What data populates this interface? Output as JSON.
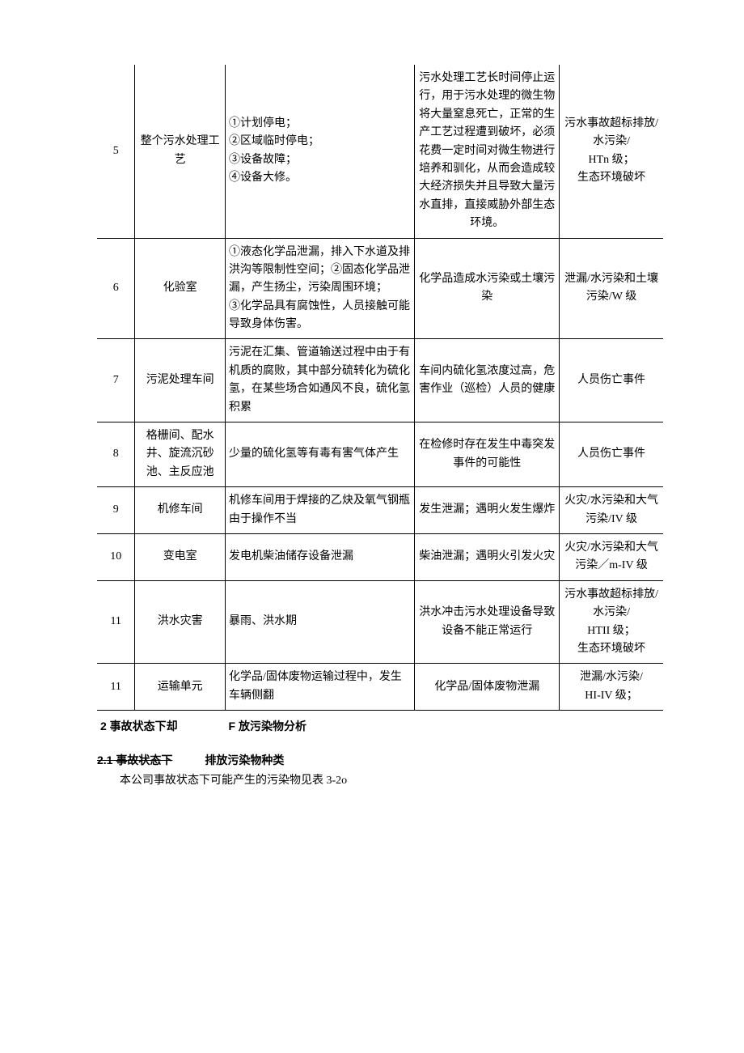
{
  "rows": [
    {
      "idx": "5",
      "loc": "整个污水处理工艺",
      "cause": "①计划停电；\n②区域临时停电；\n③设备故障；\n④设备大修。",
      "impact": "污水处理工艺长时间停止运行，用于污水处理的微生物将大量窒息死亡，正常的生产工艺过程遭到破坏，必须花费一定时间对微生物进行培养和驯化，从而会造成较大经济损失并且导致大量污水直排，直接威胁外部生态环境。",
      "risk": "污水事故超标排放/水污染/\nHTn 级；\n生态环境破坏"
    },
    {
      "idx": "6",
      "loc": "化验室",
      "cause": "①液态化学品泄漏，排入下水道及排洪沟等限制性空间；②固态化学品泄漏，产生扬尘，污染周围环境；\n③化学品具有腐蚀性，人员接触可能导致身体伤害。",
      "impact": "化学品造成水污染或土壤污染",
      "risk": "泄漏/水污染和土壤污染/W 级"
    },
    {
      "idx": "7",
      "loc": "污泥处理车间",
      "cause": "污泥在汇集、管道输送过程中由于有机质的腐败，其中部分硫转化为硫化氢，在某些场合如通风不良，硫化氢积累",
      "impact": "车间内硫化氢浓度过高，危害作业（巡检）人员的健康",
      "risk": "人员伤亡事件"
    },
    {
      "idx": "8",
      "loc": "格栅间、配水井、旋流沉砂池、主反应池",
      "cause": "少量的硫化氢等有毒有害气体产生",
      "impact": "在检修时存在发生中毒突发事件的可能性",
      "risk": "人员伤亡事件"
    },
    {
      "idx": "9",
      "loc": "机修车间",
      "cause": "机修车间用于焊接的乙炔及氧气钢瓶由于操作不当",
      "impact": "发生泄漏；遇明火发生爆炸",
      "risk": "火灾/水污染和大气污染/IV 级"
    },
    {
      "idx": "10",
      "loc": "变电室",
      "cause": "发电机柴油储存设备泄漏",
      "impact": "柴油泄漏；遇明火引发火灾",
      "risk": "火灾/水污染和大气污染／m-IV 级"
    },
    {
      "idx": "11",
      "loc": "洪水灾害",
      "cause": "暴雨、洪水期",
      "impact": "洪水冲击污水处理设备导致设备不能正常运行",
      "risk": "污水事故超标排放/水污染/\nHTII 级；\n生态环境破坏"
    },
    {
      "idx": "11",
      "loc": "运输单元",
      "cause": "化学品/固体废物运输过程中，发生车辆侧翻",
      "impact": "化学品/固体废物泄漏",
      "risk": "泄漏/水污染/\nHI-IV 级；"
    }
  ],
  "section2_left": "2 事故状态下却",
  "section2_right": "F 放污染物分析",
  "sub21_left": "2.1 事故状态下",
  "sub21_right": "排放污染物种类",
  "body_text": "本公司事故状态下可能产生的污染物见表 3-2o"
}
